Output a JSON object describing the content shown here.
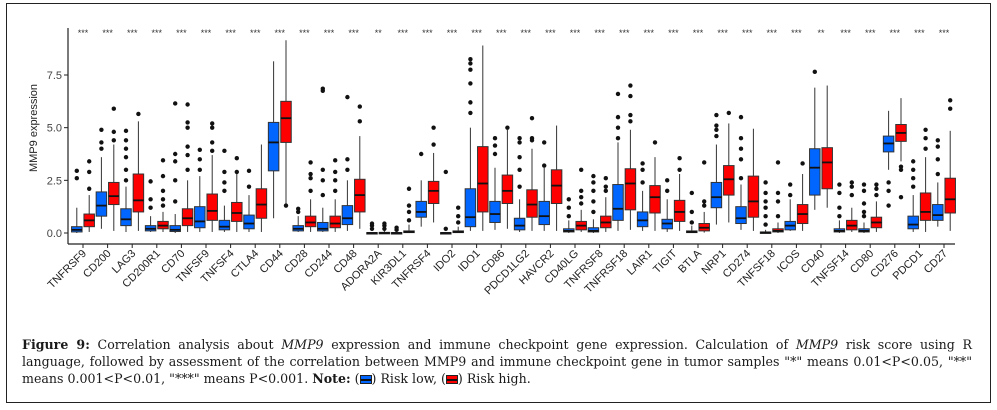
{
  "chart_data": {
    "type": "boxplot",
    "title": "",
    "xlabel": "",
    "ylabel": "MMP9 expression",
    "ylim": [
      -0.4,
      9.5
    ],
    "yticks": [
      0.0,
      2.5,
      5.0,
      7.5
    ],
    "ytick_labels": [
      "0.0",
      "2.5",
      "5.0",
      "7.5"
    ],
    "grid": false,
    "legend": "in-caption",
    "series": [
      {
        "name": "Risk low",
        "color": "#0066ff"
      },
      {
        "name": "Risk high",
        "color": "#ff0000"
      }
    ],
    "categories": [
      "TNFRSF9",
      "CD200",
      "LAG3",
      "CD200R1",
      "CD70",
      "TNFSF9",
      "TNFSF4",
      "CTLA4",
      "CD44",
      "CD28",
      "CD244",
      "CD48",
      "ADORA2A",
      "KIR3DL1",
      "TNFRSF4",
      "IDO2",
      "IDO1",
      "CD86",
      "PDCD1LG2",
      "HAVCR2",
      "CD40LG",
      "TNFRSF8",
      "TNFRSF18",
      "LAIR1",
      "TIGIT",
      "BTLA",
      "NRP1",
      "CD274",
      "TNFSF18",
      "ICOS",
      "CD40",
      "TNFSF14",
      "CD80",
      "CD276",
      "PDCD1",
      "CD27"
    ],
    "significance": [
      "***",
      "***",
      "***",
      "***",
      "***",
      "***",
      "***",
      "***",
      "***",
      "***",
      "***",
      "***",
      "**",
      "***",
      "***",
      "***",
      "***",
      "***",
      "***",
      "***",
      "***",
      "***",
      "***",
      "***",
      "***",
      "***",
      "***",
      "***",
      "***",
      "***",
      "**",
      "***",
      "***",
      "***",
      "***",
      "***"
    ],
    "boxes": {
      "low": [
        [
          0.0,
          0.05,
          0.15,
          0.3,
          1.2,
          [
            2.6,
            2.95
          ]
        ],
        [
          0.2,
          0.8,
          1.3,
          1.95,
          3.6,
          [
            4.9,
            4.3,
            4.0
          ]
        ],
        [
          0.05,
          0.35,
          0.65,
          1.15,
          2.2,
          [
            2.5,
            3.0,
            3.6,
            4.0,
            4.4,
            4.85
          ]
        ],
        [
          0.05,
          0.1,
          0.2,
          0.35,
          0.8,
          [
            1.2,
            1.6,
            2.45
          ]
        ],
        [
          0.0,
          0.07,
          0.15,
          0.35,
          0.9,
          [
            1.5,
            2.5,
            3.4,
            3.75,
            6.15
          ]
        ],
        [
          0.05,
          0.25,
          0.55,
          1.25,
          2.7,
          [
            3.0,
            3.5,
            3.95
          ]
        ],
        [
          0.05,
          0.15,
          0.3,
          0.6,
          1.3,
          [
            2.0,
            2.4,
            2.9,
            3.9
          ]
        ],
        [
          0.05,
          0.2,
          0.45,
          0.85,
          1.8,
          [
            2.2,
            2.95
          ]
        ],
        [
          0.7,
          2.95,
          4.3,
          5.25,
          8.15,
          []
        ],
        [
          0.05,
          0.1,
          0.2,
          0.35,
          0.8,
          [
            1.0,
            1.15
          ]
        ],
        [
          0.05,
          0.1,
          0.2,
          0.5,
          1.2,
          [
            1.8,
            2.5,
            3.0,
            6.75,
            6.85
          ]
        ],
        [
          0.1,
          0.4,
          0.7,
          1.3,
          2.5,
          [
            3.0,
            3.5,
            6.45
          ]
        ],
        [
          0.0,
          0.0,
          0.0,
          0.02,
          0.05,
          [
            0.2,
            0.35,
            0.45
          ]
        ],
        [
          0.0,
          0.0,
          0.0,
          0.02,
          0.05,
          [
            0.15,
            0.25
          ]
        ],
        [
          0.3,
          0.75,
          1.0,
          1.5,
          2.5,
          [
            3.75
          ]
        ],
        [
          0.0,
          0.0,
          0.0,
          0.02,
          0.05,
          [
            0.2,
            2.9
          ]
        ],
        [
          0.1,
          0.3,
          0.75,
          2.1,
          5.0,
          [
            5.7,
            6.2,
            7.1,
            7.75,
            8.05,
            8.25
          ]
        ],
        [
          0.15,
          0.5,
          0.9,
          1.5,
          3.1,
          [
            3.75,
            4.15,
            4.5
          ]
        ],
        [
          0.05,
          0.15,
          0.35,
          0.7,
          1.6,
          [
            2.2,
            3.0,
            3.6,
            4.3,
            4.5
          ]
        ],
        [
          0.1,
          0.4,
          0.8,
          1.5,
          3.1,
          [
            3.2,
            4.3
          ]
        ],
        [
          0.0,
          0.05,
          0.1,
          0.2,
          0.6,
          [
            0.8,
            1.2,
            1.6
          ]
        ],
        [
          0.0,
          0.05,
          0.1,
          0.25,
          0.65,
          [
            1.0,
            1.5,
            2.0,
            2.4,
            2.7
          ]
        ],
        [
          0.1,
          0.6,
          1.15,
          2.3,
          4.3,
          [
            4.5,
            5.0,
            5.5,
            6.6
          ]
        ],
        [
          0.1,
          0.3,
          0.6,
          1.0,
          2.0,
          [
            2.4,
            3.0,
            3.3
          ]
        ],
        [
          0.05,
          0.2,
          0.45,
          0.65,
          1.6,
          [
            2.0,
            2.5
          ]
        ],
        [
          0.0,
          0.02,
          0.05,
          0.1,
          0.35,
          [
            0.5,
            1.0,
            1.9
          ]
        ],
        [
          0.4,
          1.2,
          1.7,
          2.4,
          4.2,
          [
            4.6,
            4.9,
            5.1,
            5.6
          ]
        ],
        [
          0.15,
          0.45,
          0.7,
          1.25,
          2.3,
          [
            2.6,
            3.5,
            4.0,
            4.5,
            5.5
          ]
        ],
        [
          0.0,
          0.0,
          0.02,
          0.05,
          0.15,
          [
            0.4,
            0.8,
            1.2,
            1.5,
            1.9,
            2.4
          ]
        ],
        [
          0.1,
          0.15,
          0.35,
          0.55,
          1.6,
          [
            1.8,
            2.3
          ]
        ],
        [
          1.1,
          1.8,
          3.1,
          4.0,
          6.9,
          [
            7.65
          ]
        ],
        [
          0.0,
          0.05,
          0.1,
          0.2,
          0.6,
          [
            0.8,
            1.2,
            1.9,
            2.3
          ]
        ],
        [
          0.0,
          0.05,
          0.1,
          0.2,
          0.5,
          [
            0.8,
            1.0,
            1.4,
            2.0,
            2.3
          ]
        ],
        [
          3.0,
          3.85,
          4.25,
          4.6,
          5.8,
          [
            1.3,
            2.0,
            2.4
          ]
        ],
        [
          0.05,
          0.2,
          0.4,
          0.8,
          1.8,
          [
            2.2,
            2.6,
            3.0,
            3.4
          ]
        ],
        [
          0.3,
          0.6,
          0.85,
          1.35,
          2.4,
          [
            2.8,
            3.5,
            4.1,
            4.4
          ]
        ]
      ],
      "high": [
        [
          0.05,
          0.3,
          0.6,
          0.9,
          1.8,
          [
            2.1,
            2.9,
            3.4
          ]
        ],
        [
          0.1,
          1.35,
          1.75,
          2.4,
          4.2,
          [
            4.4,
            4.8,
            5.9
          ]
        ],
        [
          0.1,
          1.0,
          1.55,
          2.8,
          5.3,
          [
            5.65
          ]
        ],
        [
          0.05,
          0.2,
          0.35,
          0.55,
          1.0,
          [
            1.3,
            1.6,
            2.0,
            2.7,
            3.45
          ]
        ],
        [
          0.05,
          0.35,
          0.7,
          1.15,
          2.5,
          [
            3.0,
            3.7,
            4.1,
            5.0,
            5.25,
            6.1
          ]
        ],
        [
          0.05,
          0.6,
          1.05,
          1.85,
          3.7,
          [
            3.9,
            4.3,
            5.0,
            5.2
          ]
        ],
        [
          0.05,
          0.55,
          0.95,
          1.45,
          2.8,
          [
            2.9,
            3.55
          ]
        ],
        [
          0.05,
          0.7,
          1.35,
          2.1,
          4.2,
          []
        ],
        [
          1.3,
          4.3,
          5.45,
          6.25,
          9.15,
          [
            1.3
          ]
        ],
        [
          0.05,
          0.3,
          0.5,
          0.8,
          1.6,
          [
            2.0,
            2.6,
            2.8,
            3.35
          ]
        ],
        [
          0.05,
          0.25,
          0.45,
          0.8,
          1.6,
          [
            2.0,
            2.5,
            2.9,
            3.45
          ]
        ],
        [
          0.2,
          1.0,
          1.8,
          2.55,
          4.6,
          [
            5.3,
            6.0
          ]
        ],
        [
          0.0,
          0.0,
          0.0,
          0.03,
          0.1,
          [
            0.2,
            0.35,
            0.45
          ]
        ],
        [
          0.0,
          0.02,
          0.05,
          0.1,
          0.4,
          [
            0.6,
            1.0,
            1.3,
            2.1
          ]
        ],
        [
          0.5,
          1.4,
          2.0,
          2.45,
          3.8,
          [
            4.2,
            5.0
          ]
        ],
        [
          0.0,
          0.02,
          0.05,
          0.1,
          0.3,
          [
            0.5,
            0.8,
            1.2
          ]
        ],
        [
          0.1,
          1.0,
          2.35,
          4.1,
          8.9,
          []
        ],
        [
          0.2,
          1.4,
          2.0,
          2.75,
          4.9,
          [
            5.0
          ]
        ],
        [
          0.1,
          0.75,
          1.35,
          2.05,
          4.0,
          [
            4.4,
            4.5,
            5.45
          ]
        ],
        [
          0.1,
          1.4,
          2.25,
          3.0,
          5.1,
          []
        ],
        [
          0.05,
          0.15,
          0.35,
          0.55,
          1.1,
          [
            1.4,
            1.7,
            2.0,
            3.0
          ]
        ],
        [
          0.05,
          0.25,
          0.5,
          0.8,
          1.7,
          [
            2.0,
            2.2,
            2.6
          ]
        ],
        [
          0.15,
          1.1,
          2.35,
          3.05,
          4.9,
          [
            5.3,
            5.6,
            6.5,
            7.0
          ]
        ],
        [
          0.1,
          0.95,
          1.7,
          2.25,
          3.6,
          [
            4.3
          ]
        ],
        [
          0.1,
          0.55,
          1.0,
          1.55,
          2.8,
          [
            3.0,
            3.55
          ]
        ],
        [
          0.02,
          0.1,
          0.25,
          0.45,
          1.0,
          [
            1.3,
            1.5,
            3.35
          ]
        ],
        [
          0.5,
          1.8,
          2.55,
          3.2,
          5.2,
          [
            5.7
          ]
        ],
        [
          0.1,
          0.75,
          1.5,
          2.7,
          4.95,
          []
        ],
        [
          0.0,
          0.05,
          0.1,
          0.2,
          0.5,
          [
            0.8,
            1.5,
            1.9,
            3.35
          ]
        ],
        [
          0.1,
          0.45,
          0.9,
          1.35,
          2.8,
          [
            3.3
          ]
        ],
        [
          1.2,
          2.1,
          3.35,
          4.05,
          7.0,
          []
        ],
        [
          0.05,
          0.15,
          0.35,
          0.6,
          1.2,
          [
            1.8,
            2.2,
            2.4
          ]
        ],
        [
          0.05,
          0.25,
          0.5,
          0.75,
          1.5,
          [
            1.8,
            2.1,
            2.3
          ]
        ],
        [
          3.4,
          4.35,
          4.75,
          5.15,
          6.4,
          [
            3.0,
            3.15,
            1.7
          ]
        ],
        [
          0.05,
          0.6,
          1.0,
          1.9,
          3.6,
          [
            4.0,
            4.5,
            4.9
          ]
        ],
        [
          0.1,
          0.95,
          1.6,
          2.6,
          4.85,
          [
            5.9,
            6.3
          ]
        ]
      ]
    }
  },
  "caption": {
    "label": "Figure 9:",
    "part1": " Correlation analysis about ",
    "gene1": "MMP9",
    "part2": " expression and immune checkpoint gene expression. Calculation of ",
    "gene2": "MMP9",
    "part3": " risk score using R language, followed by assessment of the correlation between ",
    "gene3": "MMP9",
    "part4": " and immune checkpoint gene in tumor samples \"*\" means 0.01<P<0.05, \"**\" means 0.001<P<0.01, \"***\" means P<0.001. ",
    "note_label": "Note:",
    "legend_low": "Risk low,",
    "legend_high": "Risk high."
  }
}
